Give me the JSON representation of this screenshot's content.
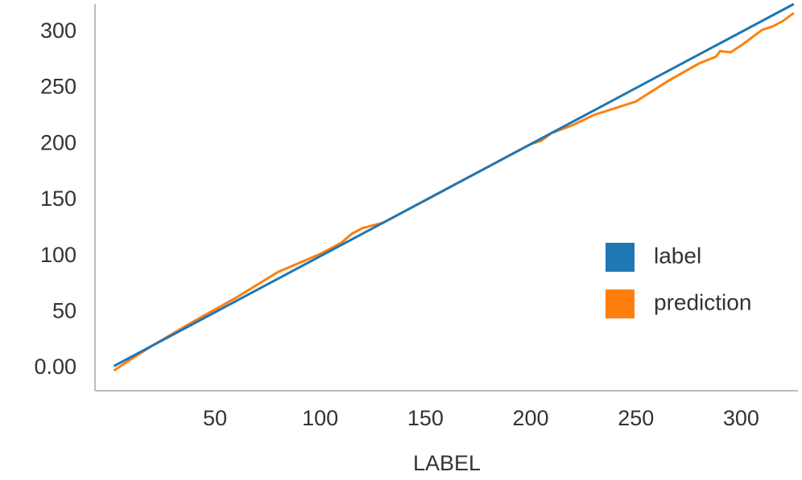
{
  "chart_data": {
    "type": "line",
    "x_label": "LABEL",
    "series": [
      {
        "name": "label",
        "color": "#1f77b4",
        "x": [
          2,
          325
        ],
        "values": [
          2,
          325
        ]
      },
      {
        "name": "prediction",
        "color": "#ff7f0e",
        "x": [
          2,
          10,
          20,
          40,
          60,
          80,
          85,
          100,
          110,
          115,
          120,
          130,
          140,
          150,
          160,
          170,
          180,
          190,
          200,
          205,
          210,
          220,
          230,
          250,
          265,
          280,
          288,
          290,
          295,
          300,
          310,
          315,
          320,
          325
        ],
        "values": [
          -2,
          8,
          20,
          42,
          63,
          86,
          90,
          102,
          112,
          120,
          125,
          130,
          140,
          150,
          160,
          170,
          180,
          190,
          200,
          203,
          210,
          217,
          226,
          238,
          256,
          272,
          278,
          283,
          282,
          288,
          302,
          305,
          310,
          317
        ]
      }
    ],
    "xlim": [
      -7,
      327
    ],
    "ylim": [
      -20,
      325
    ],
    "xticks": [
      50,
      100,
      150,
      200,
      250,
      300
    ],
    "yticks": [
      {
        "value": 0,
        "label": "0.00"
      },
      50,
      100,
      150,
      200,
      250,
      300
    ],
    "legend": "center right"
  }
}
